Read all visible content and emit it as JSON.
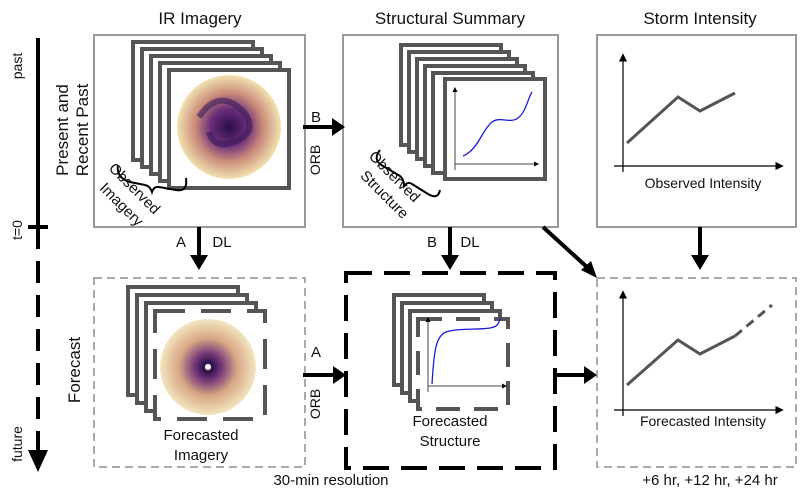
{
  "columns": {
    "ir_imagery": "IR Imagery",
    "structural_summary": "Structural Summary",
    "storm_intensity": "Storm Intensity"
  },
  "timeline": {
    "past": "past",
    "t0": "t=0",
    "future": "future"
  },
  "rows": {
    "present_line1": "Present and",
    "present_line2": "Recent Past",
    "forecast": "Forecast"
  },
  "panels": {
    "observed_imagery_line1": "Observed",
    "observed_imagery_line2": "Imagery",
    "observed_structure_line1": "Observed",
    "observed_structure_line2": "Structure",
    "observed_intensity": "Observed Intensity",
    "forecasted_imagery_line1": "Forecasted",
    "forecasted_imagery_line2": "Imagery",
    "forecasted_structure_line1": "Forecasted",
    "forecasted_structure_line2": "Structure",
    "forecasted_intensity": "Forecasted Intensity"
  },
  "arrows": {
    "b_top": "B",
    "orb_top": "ORB",
    "a_left": "A",
    "dl_left": "DL",
    "b_mid": "B",
    "dl_mid": "DL",
    "a_bottom": "A",
    "orb_bottom": "ORB"
  },
  "footer": {
    "resolution": "30-min resolution",
    "horizons": "+6 hr, +12 hr, +24 hr"
  },
  "colors": {
    "frame": "#999999",
    "stack": "#555555",
    "curve": "#1a1adc",
    "line": "#555555"
  }
}
